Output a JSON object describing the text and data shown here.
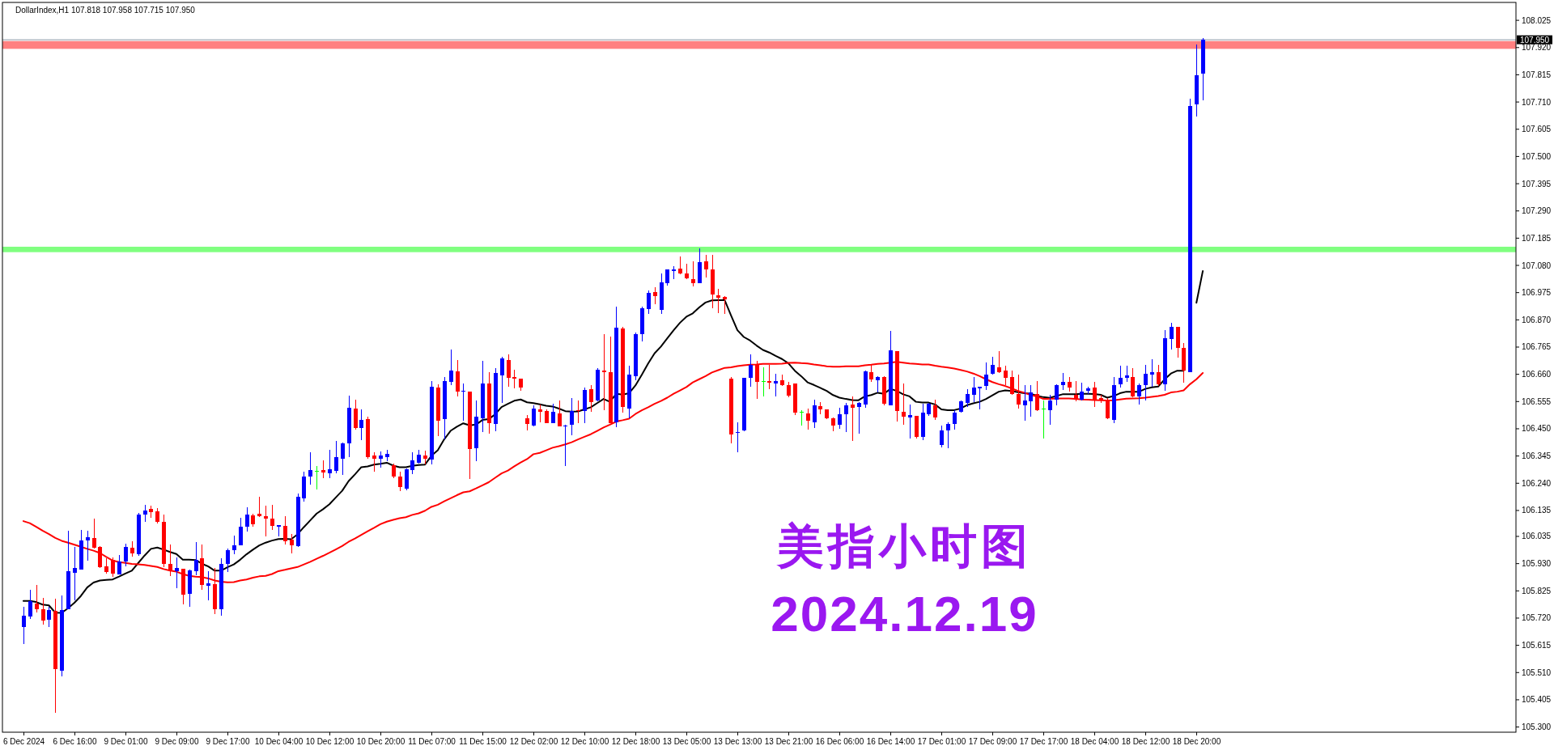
{
  "chart_data": {
    "type": "candlestick",
    "title": "DollarIndex,H1 107.818 107.958 107.715 107.950",
    "categories": [
      "6 Dec 2024",
      null,
      null,
      null,
      null,
      null,
      null,
      null,
      "6 Dec 16:00",
      null,
      null,
      null,
      null,
      null,
      null,
      null,
      "9 Dec 01:00",
      null,
      null,
      null,
      null,
      null,
      null,
      null,
      "9 Dec 09:00",
      null,
      null,
      null,
      null,
      null,
      null,
      null,
      "9 Dec 17:00",
      null,
      null,
      null,
      null,
      null,
      null,
      null,
      "10 Dec 04:00",
      null,
      null,
      null,
      null,
      null,
      null,
      null,
      "10 Dec 12:00",
      null,
      null,
      null,
      null,
      null,
      null,
      null,
      "10 Dec 20:00",
      null,
      null,
      null,
      null,
      null,
      null,
      null,
      "11 Dec 07:00",
      null,
      null,
      null,
      null,
      null,
      null,
      null,
      "11 Dec 15:00",
      null,
      null,
      null,
      null,
      null,
      null,
      null,
      "12 Dec 02:00",
      null,
      null,
      null,
      null,
      null,
      null,
      null,
      "12 Dec 10:00",
      null,
      null,
      null,
      null,
      null,
      null,
      null,
      "12 Dec 18:00",
      null,
      null,
      null,
      null,
      null,
      null,
      null,
      "13 Dec 05:00",
      null,
      null,
      null,
      null,
      null,
      null,
      null,
      "13 Dec 13:00",
      null,
      null,
      null,
      null,
      null,
      null,
      null,
      "13 Dec 21:00",
      null,
      null,
      null,
      null,
      null,
      null,
      null,
      "16 Dec 06:00",
      null,
      null,
      null,
      null,
      null,
      null,
      null,
      "16 Dec 14:00",
      null,
      null,
      null,
      null,
      null,
      null,
      null,
      "17 Dec 01:00",
      null,
      null,
      null,
      null,
      null,
      null,
      null,
      "17 Dec 09:00",
      null,
      null,
      null,
      null,
      null,
      null,
      null,
      "17 Dec 17:00",
      null,
      null,
      null,
      null,
      null,
      null,
      null,
      "18 Dec 04:00",
      null,
      null,
      null,
      null,
      null,
      null,
      null,
      "18 Dec 12:00",
      null,
      null,
      null,
      null,
      null,
      null,
      null,
      "18 Dec 20:00",
      null
    ],
    "ohlc": [
      [
        105.685,
        105.763,
        105.62,
        105.73
      ],
      [
        105.727,
        105.828,
        105.717,
        105.786
      ],
      [
        105.777,
        105.847,
        105.741,
        105.753
      ],
      [
        105.753,
        105.797,
        105.696,
        105.711
      ],
      [
        105.715,
        105.763,
        105.685,
        105.751
      ],
      [
        105.747,
        105.795,
        105.356,
        105.522
      ],
      [
        105.518,
        105.807,
        105.496,
        105.75
      ],
      [
        105.755,
        106.057,
        105.753,
        105.901
      ],
      [
        105.895,
        105.994,
        105.789,
        105.913
      ],
      [
        105.908,
        106.06,
        105.908,
        106.019
      ],
      [
        106.019,
        106.057,
        105.942,
        106.032
      ],
      [
        106.029,
        106.105,
        105.988,
        105.992
      ],
      [
        105.994,
        105.997,
        105.914,
        105.917
      ],
      [
        105.918,
        105.951,
        105.89,
        105.899
      ],
      [
        105.944,
        105.953,
        105.878,
        105.892
      ],
      [
        105.889,
        105.963,
        105.888,
        105.938
      ],
      [
        105.939,
        106.006,
        105.919,
        105.994
      ],
      [
        105.991,
        106.016,
        105.956,
        105.97
      ],
      [
        105.967,
        106.125,
        105.959,
        106.119
      ],
      [
        106.12,
        106.156,
        106.092,
        106.134
      ],
      [
        106.141,
        106.152,
        106.107,
        106.13
      ],
      [
        106.132,
        106.143,
        106.086,
        106.091
      ],
      [
        106.091,
        106.119,
        105.916,
        105.93
      ],
      [
        105.929,
        106.003,
        105.882,
        105.903
      ],
      [
        105.901,
        105.953,
        105.836,
        105.913
      ],
      [
        105.91,
        105.91,
        105.774,
        105.811
      ],
      [
        105.815,
        105.906,
        105.763,
        105.904
      ],
      [
        105.902,
        106.013,
        105.885,
        105.946
      ],
      [
        105.951,
        106.003,
        105.829,
        105.849
      ],
      [
        105.846,
        105.901,
        105.788,
        105.854
      ],
      [
        105.851,
        105.913,
        105.736,
        105.755
      ],
      [
        105.753,
        105.951,
        105.73,
        105.929
      ],
      [
        105.93,
        105.987,
        105.899,
        105.982
      ],
      [
        105.983,
        106.038,
        105.966,
        106.001
      ],
      [
        106.001,
        106.107,
        106.001,
        106.072
      ],
      [
        106.073,
        106.147,
        106.053,
        106.119
      ],
      [
        106.116,
        106.122,
        106.073,
        106.081
      ],
      [
        106.122,
        106.188,
        106.109,
        106.112
      ],
      [
        106.113,
        106.153,
        106.034,
        106.105
      ],
      [
        106.104,
        106.156,
        106.06,
        106.075
      ],
      [
        106.073,
        106.079,
        106.034,
        106.079
      ],
      [
        106.076,
        106.113,
        106.005,
        106.016
      ],
      [
        106.024,
        106.045,
        105.97,
        106.001
      ],
      [
        105.998,
        106.199,
        105.995,
        106.188
      ],
      [
        106.182,
        106.286,
        106.168,
        106.265
      ],
      [
        106.267,
        106.359,
        106.235,
        106.291
      ],
      [
        106.287,
        106.307,
        106.217,
        106.287
      ],
      [
        106.291,
        106.329,
        106.261,
        106.282
      ],
      [
        106.277,
        106.369,
        106.261,
        106.294
      ],
      [
        106.289,
        106.404,
        106.279,
        106.341
      ],
      [
        106.336,
        106.398,
        106.271,
        106.395
      ],
      [
        106.395,
        106.578,
        106.342,
        106.532
      ],
      [
        106.527,
        106.563,
        106.447,
        106.454
      ],
      [
        106.453,
        106.525,
        106.407,
        106.485
      ],
      [
        106.488,
        106.496,
        106.333,
        106.341
      ],
      [
        106.347,
        106.36,
        106.286,
        106.336
      ],
      [
        106.334,
        106.362,
        106.299,
        106.347
      ],
      [
        106.342,
        106.37,
        106.326,
        106.354
      ],
      [
        106.31,
        106.317,
        106.261,
        106.266
      ],
      [
        106.266,
        106.286,
        106.211,
        106.224
      ],
      [
        106.22,
        106.296,
        106.214,
        106.294
      ],
      [
        106.292,
        106.36,
        106.274,
        106.328
      ],
      [
        106.319,
        106.37,
        106.315,
        106.35
      ],
      [
        106.347,
        106.367,
        106.313,
        106.336
      ],
      [
        106.332,
        106.634,
        106.314,
        106.613
      ],
      [
        106.61,
        106.622,
        106.421,
        106.482
      ],
      [
        106.486,
        106.651,
        106.409,
        106.634
      ],
      [
        106.632,
        106.756,
        106.619,
        106.675
      ],
      [
        106.672,
        106.716,
        106.575,
        106.594
      ],
      [
        106.592,
        106.625,
        106.482,
        106.597
      ],
      [
        106.594,
        106.594,
        106.255,
        106.372
      ],
      [
        106.376,
        106.56,
        106.326,
        106.497
      ],
      [
        106.489,
        106.712,
        106.438,
        106.625
      ],
      [
        106.625,
        106.669,
        106.432,
        106.473
      ],
      [
        106.469,
        106.684,
        106.442,
        106.664
      ],
      [
        106.656,
        106.726,
        106.549,
        106.72
      ],
      [
        106.716,
        106.738,
        106.611,
        106.648
      ],
      [
        106.651,
        106.679,
        106.606,
        106.642
      ],
      [
        106.642,
        106.644,
        106.598,
        106.608
      ],
      [
        106.492,
        106.504,
        106.444,
        106.469
      ],
      [
        106.463,
        106.541,
        106.458,
        106.528
      ],
      [
        106.525,
        106.542,
        106.476,
        106.515
      ],
      [
        106.518,
        106.525,
        106.473,
        106.473
      ],
      [
        106.471,
        106.546,
        106.471,
        106.516
      ],
      [
        106.51,
        106.559,
        106.458,
        106.458
      ],
      [
        106.458,
        106.465,
        106.307,
        106.463
      ],
      [
        106.467,
        106.57,
        106.424,
        106.518
      ],
      [
        106.521,
        106.559,
        106.471,
        106.517
      ],
      [
        106.518,
        106.609,
        106.473,
        106.599
      ],
      [
        106.603,
        106.619,
        106.515,
        106.554
      ],
      [
        106.558,
        106.685,
        106.556,
        106.679
      ],
      [
        106.674,
        106.814,
        106.523,
        106.669
      ],
      [
        106.669,
        106.806,
        106.473,
        106.473
      ],
      [
        106.476,
        106.921,
        106.457,
        106.84
      ],
      [
        106.837,
        106.842,
        106.513,
        106.533
      ],
      [
        106.528,
        106.692,
        106.492,
        106.659
      ],
      [
        106.654,
        106.821,
        106.637,
        106.816
      ],
      [
        106.816,
        106.92,
        106.788,
        106.916
      ],
      [
        106.913,
        106.983,
        106.894,
        106.975
      ],
      [
        106.977,
        106.996,
        106.931,
        106.963
      ],
      [
        106.908,
        107.05,
        106.894,
        107.015
      ],
      [
        107.012,
        107.066,
        107.003,
        107.063
      ],
      [
        107.058,
        107.077,
        107.027,
        107.066
      ],
      [
        107.068,
        107.113,
        107.047,
        107.05
      ],
      [
        107.049,
        107.087,
        107.027,
        107.029
      ],
      [
        107.028,
        107.095,
        106.998,
        107.01
      ],
      [
        107.013,
        107.147,
        107.013,
        107.094
      ],
      [
        107.096,
        107.121,
        107.033,
        107.063
      ],
      [
        107.066,
        107.12,
        106.916,
        106.969
      ],
      [
        106.965,
        106.991,
        106.897,
        106.954
      ],
      [
        106.958,
        106.962,
        106.894,
        106.948
      ],
      [
        106.643,
        106.65,
        106.393,
        106.429
      ],
      [
        106.432,
        106.474,
        106.359,
        106.435
      ],
      [
        106.445,
        106.648,
        106.44,
        106.646
      ],
      [
        106.648,
        106.736,
        106.613,
        106.697
      ],
      [
        106.695,
        106.712,
        106.565,
        106.632
      ],
      [
        106.633,
        106.687,
        106.575,
        106.633
      ],
      [
        106.634,
        106.695,
        106.603,
        106.629
      ],
      [
        106.626,
        106.663,
        106.575,
        106.634
      ],
      [
        106.637,
        106.658,
        106.615,
        106.617
      ],
      [
        106.617,
        106.63,
        106.572,
        106.578
      ],
      [
        106.625,
        106.625,
        106.504,
        106.513
      ],
      [
        106.513,
        106.521,
        106.461,
        106.513
      ],
      [
        106.509,
        106.528,
        106.448,
        106.481
      ],
      [
        106.476,
        106.563,
        106.452,
        106.541
      ],
      [
        106.538,
        106.554,
        106.507,
        106.525
      ],
      [
        106.525,
        106.525,
        106.486,
        106.489
      ],
      [
        106.489,
        106.494,
        106.442,
        106.461
      ],
      [
        106.464,
        106.531,
        106.45,
        106.506
      ],
      [
        106.507,
        106.551,
        106.438,
        106.541
      ],
      [
        106.544,
        106.575,
        106.403,
        106.531
      ],
      [
        106.535,
        106.554,
        106.431,
        106.551
      ],
      [
        106.544,
        106.676,
        106.531,
        106.672
      ],
      [
        106.669,
        106.695,
        106.632,
        106.641
      ],
      [
        106.637,
        106.653,
        106.589,
        106.65
      ],
      [
        106.65,
        106.653,
        106.541,
        106.547
      ],
      [
        106.541,
        106.828,
        106.539,
        106.754
      ],
      [
        106.75,
        106.75,
        106.479,
        106.517
      ],
      [
        106.516,
        106.625,
        106.466,
        106.497
      ],
      [
        106.495,
        106.544,
        106.414,
        106.502
      ],
      [
        106.5,
        106.5,
        106.411,
        106.419
      ],
      [
        106.419,
        106.547,
        106.405,
        106.513
      ],
      [
        106.506,
        106.549,
        106.5,
        106.546
      ],
      [
        106.541,
        106.561,
        106.483,
        106.494
      ],
      [
        106.388,
        106.461,
        106.379,
        106.444
      ],
      [
        106.445,
        106.476,
        106.374,
        106.469
      ],
      [
        106.47,
        106.521,
        106.448,
        106.513
      ],
      [
        106.515,
        106.559,
        106.511,
        106.556
      ],
      [
        106.551,
        106.604,
        106.535,
        106.584
      ],
      [
        106.582,
        106.651,
        106.554,
        106.609
      ],
      [
        106.606,
        106.611,
        106.526,
        106.611
      ],
      [
        106.615,
        106.705,
        106.599,
        106.66
      ],
      [
        106.663,
        106.726,
        106.66,
        106.697
      ],
      [
        106.687,
        106.75,
        106.666,
        106.669
      ],
      [
        106.675,
        106.693,
        106.619,
        106.648
      ],
      [
        106.649,
        106.674,
        106.58,
        106.583
      ],
      [
        106.583,
        106.658,
        106.528,
        106.542
      ],
      [
        106.539,
        106.619,
        106.481,
        106.559
      ],
      [
        106.557,
        106.619,
        106.497,
        106.589
      ],
      [
        106.585,
        106.634,
        106.518,
        106.521
      ],
      [
        106.525,
        106.559,
        106.411,
        106.525
      ],
      [
        106.523,
        106.581,
        106.465,
        106.559
      ],
      [
        106.561,
        106.621,
        106.541,
        106.617
      ],
      [
        106.619,
        106.665,
        106.599,
        106.632
      ],
      [
        106.632,
        106.65,
        106.593,
        106.61
      ],
      [
        106.581,
        106.633,
        106.555,
        106.563
      ],
      [
        106.561,
        106.628,
        106.558,
        106.593
      ],
      [
        106.596,
        106.613,
        106.583,
        106.606
      ],
      [
        106.61,
        106.63,
        106.535,
        106.563
      ],
      [
        106.567,
        106.581,
        106.55,
        106.559
      ],
      [
        106.561,
        106.567,
        106.488,
        106.492
      ],
      [
        106.483,
        106.65,
        106.471,
        106.619
      ],
      [
        106.621,
        106.692,
        106.61,
        106.645
      ],
      [
        106.645,
        106.692,
        106.63,
        106.657
      ],
      [
        106.65,
        106.685,
        106.573,
        106.576
      ],
      [
        106.576,
        106.625,
        106.544,
        106.617
      ],
      [
        106.617,
        106.696,
        106.559,
        106.662
      ],
      [
        106.659,
        106.717,
        106.613,
        106.667
      ],
      [
        106.669,
        106.696,
        106.615,
        106.621
      ],
      [
        106.621,
        106.83,
        106.596,
        106.8
      ],
      [
        106.796,
        106.858,
        106.757,
        106.842
      ],
      [
        106.844,
        106.844,
        106.723,
        106.761
      ],
      [
        106.763,
        106.781,
        106.627,
        106.674
      ],
      [
        106.669,
        107.724,
        106.669,
        107.696
      ],
      [
        107.701,
        107.933,
        107.653,
        107.814
      ],
      [
        107.818,
        107.958,
        107.715,
        107.95
      ]
    ],
    "colors": [
      "#0000ff",
      "#0000ff",
      "#ff0000",
      "#ff0000",
      "#0000ff",
      "#ff0000",
      "#0000ff",
      "#0000ff",
      "#0000ff",
      "#0000ff",
      "#0000ff",
      "#ff0000",
      "#ff0000",
      "#ff0000",
      "#ff0000",
      "#0000ff",
      "#0000ff",
      "#ff0000",
      "#0000ff",
      "#0000ff",
      "#ff0000",
      "#ff0000",
      "#ff0000",
      "#ff0000",
      "#0000ff",
      "#ff0000",
      "#0000ff",
      "#0000ff",
      "#ff0000",
      "#0000ff",
      "#ff0000",
      "#0000ff",
      "#0000ff",
      "#0000ff",
      "#0000ff",
      "#0000ff",
      "#ff0000",
      "#ff0000",
      "#ff0000",
      "#ff0000",
      "#0000ff",
      "#ff0000",
      "#ff0000",
      "#0000ff",
      "#0000ff",
      "#0000ff",
      "#00ff00",
      "#ff0000",
      "#0000ff",
      "#0000ff",
      "#0000ff",
      "#0000ff",
      "#ff0000",
      "#0000ff",
      "#ff0000",
      "#ff0000",
      "#0000ff",
      "#0000ff",
      "#ff0000",
      "#ff0000",
      "#0000ff",
      "#0000ff",
      "#0000ff",
      "#ff0000",
      "#0000ff",
      "#ff0000",
      "#0000ff",
      "#0000ff",
      "#ff0000",
      "#0000ff",
      "#ff0000",
      "#0000ff",
      "#0000ff",
      "#ff0000",
      "#0000ff",
      "#0000ff",
      "#ff0000",
      "#ff0000",
      "#ff0000",
      "#ff0000",
      "#0000ff",
      "#ff0000",
      "#ff0000",
      "#0000ff",
      "#ff0000",
      "#0000ff",
      "#0000ff",
      "#ff0000",
      "#0000ff",
      "#ff0000",
      "#0000ff",
      "#ff0000",
      "#ff0000",
      "#0000ff",
      "#ff0000",
      "#0000ff",
      "#0000ff",
      "#0000ff",
      "#0000ff",
      "#ff0000",
      "#0000ff",
      "#0000ff",
      "#0000ff",
      "#ff0000",
      "#ff0000",
      "#ff0000",
      "#0000ff",
      "#ff0000",
      "#ff0000",
      "#ff0000",
      "#ff0000",
      "#ff0000",
      "#0000ff",
      "#0000ff",
      "#0000ff",
      "#ff0000",
      "#00ff00",
      "#ff0000",
      "#0000ff",
      "#ff0000",
      "#ff0000",
      "#ff0000",
      "#00ff00",
      "#ff0000",
      "#0000ff",
      "#ff0000",
      "#ff0000",
      "#ff0000",
      "#0000ff",
      "#0000ff",
      "#ff0000",
      "#0000ff",
      "#0000ff",
      "#ff0000",
      "#0000ff",
      "#ff0000",
      "#0000ff",
      "#ff0000",
      "#ff0000",
      "#0000ff",
      "#ff0000",
      "#0000ff",
      "#0000ff",
      "#ff0000",
      "#0000ff",
      "#0000ff",
      "#0000ff",
      "#0000ff",
      "#0000ff",
      "#0000ff",
      "#0000ff",
      "#0000ff",
      "#0000ff",
      "#ff0000",
      "#ff0000",
      "#ff0000",
      "#ff0000",
      "#0000ff",
      "#0000ff",
      "#ff0000",
      "#00ff00",
      "#0000ff",
      "#0000ff",
      "#0000ff",
      "#ff0000",
      "#ff0000",
      "#0000ff",
      "#0000ff",
      "#ff0000",
      "#ff0000",
      "#ff0000",
      "#0000ff",
      "#0000ff",
      "#0000ff",
      "#ff0000",
      "#0000ff",
      "#0000ff",
      "#0000ff",
      "#ff0000",
      "#0000ff",
      "#0000ff",
      "#ff0000",
      "#ff0000",
      "#0000ff",
      "#0000ff",
      "#0000ff"
    ],
    "series": [
      {
        "type": "line",
        "color": "#000000",
        "values": [
          105.786,
          105.786,
          105.782,
          105.772,
          105.769,
          105.741,
          105.74,
          105.758,
          105.779,
          105.805,
          105.838,
          105.857,
          105.865,
          105.867,
          105.869,
          105.88,
          105.892,
          105.903,
          105.932,
          105.961,
          105.987,
          105.992,
          105.984,
          105.975,
          105.967,
          105.945,
          105.945,
          105.944,
          105.93,
          105.919,
          105.903,
          105.903,
          105.916,
          105.927,
          105.945,
          105.966,
          105.984,
          106.0,
          106.011,
          106.019,
          106.025,
          106.026,
          106.024,
          106.043,
          106.071,
          106.097,
          106.123,
          106.14,
          106.159,
          106.185,
          106.211,
          106.248,
          106.274,
          106.302,
          106.305,
          106.312,
          106.315,
          106.319,
          106.308,
          106.302,
          106.302,
          106.307,
          106.31,
          106.312,
          106.346,
          106.367,
          106.409,
          106.442,
          106.458,
          106.471,
          106.463,
          106.466,
          106.484,
          106.487,
          106.506,
          106.534,
          106.546,
          106.558,
          106.563,
          106.552,
          106.549,
          106.544,
          106.539,
          106.536,
          106.528,
          106.518,
          106.516,
          106.517,
          106.525,
          106.533,
          106.549,
          106.565,
          106.554,
          106.585,
          106.582,
          106.587,
          106.617,
          106.658,
          106.702,
          106.741,
          106.767,
          106.799,
          106.83,
          106.859,
          106.882,
          106.895,
          106.918,
          106.937,
          106.945,
          106.946,
          106.946,
          106.887,
          106.83,
          106.804,
          106.79,
          106.771,
          106.754,
          106.744,
          106.731,
          106.719,
          106.702,
          106.674,
          106.653,
          106.629,
          106.619,
          106.608,
          106.596,
          106.58,
          106.57,
          106.565,
          106.561,
          106.56,
          106.575,
          106.58,
          106.589,
          106.585,
          106.604,
          106.596,
          106.583,
          106.575,
          106.554,
          106.551,
          106.551,
          106.544,
          106.525,
          106.522,
          106.522,
          106.528,
          106.541,
          106.548,
          106.554,
          106.565,
          106.579,
          106.593,
          106.598,
          106.596,
          106.591,
          106.587,
          106.585,
          106.577,
          106.572,
          106.569,
          106.576,
          106.583,
          106.583,
          106.583,
          106.585,
          106.585,
          106.584,
          106.581,
          106.57,
          106.576,
          106.587,
          106.593,
          106.593,
          106.593,
          106.604,
          106.61,
          106.613,
          106.64,
          106.663,
          106.674,
          106.674,
          null,
          106.936,
          107.058
        ]
      },
      {
        "type": "line",
        "color": "#ff0000",
        "values": [
          106.094,
          106.086,
          106.072,
          106.057,
          106.044,
          106.029,
          106.018,
          106.011,
          106.003,
          105.995,
          105.987,
          105.98,
          105.971,
          105.956,
          105.942,
          105.936,
          105.933,
          105.929,
          105.927,
          105.925,
          105.921,
          105.917,
          105.909,
          105.903,
          105.899,
          105.89,
          105.883,
          105.88,
          105.878,
          105.873,
          105.865,
          105.86,
          105.858,
          105.859,
          105.865,
          105.869,
          105.876,
          105.881,
          105.883,
          105.89,
          105.901,
          105.906,
          105.912,
          105.917,
          105.927,
          105.937,
          105.949,
          105.96,
          105.972,
          105.985,
          105.998,
          106.014,
          106.027,
          106.041,
          106.055,
          106.068,
          106.082,
          106.092,
          106.099,
          106.105,
          106.109,
          106.118,
          106.124,
          106.134,
          106.149,
          106.157,
          106.17,
          106.182,
          106.194,
          106.205,
          106.209,
          106.22,
          106.232,
          106.244,
          106.261,
          106.278,
          106.289,
          106.305,
          106.32,
          106.333,
          106.352,
          106.357,
          106.367,
          106.377,
          106.383,
          106.39,
          106.398,
          106.409,
          106.419,
          106.429,
          106.442,
          106.455,
          106.466,
          106.478,
          106.483,
          106.489,
          106.507,
          106.521,
          106.533,
          106.546,
          106.557,
          106.57,
          106.585,
          106.598,
          106.611,
          106.629,
          106.641,
          106.653,
          106.667,
          106.676,
          106.685,
          106.687,
          106.692,
          106.695,
          106.697,
          106.698,
          106.7,
          106.7,
          106.7,
          106.701,
          106.704,
          106.705,
          106.703,
          106.702,
          106.698,
          106.695,
          106.691,
          106.689,
          106.689,
          106.691,
          106.691,
          106.691,
          106.695,
          106.697,
          106.7,
          106.702,
          106.705,
          106.708,
          106.705,
          106.702,
          106.7,
          106.698,
          106.698,
          106.693,
          106.689,
          106.686,
          106.682,
          106.677,
          106.671,
          106.663,
          106.653,
          106.641,
          106.63,
          106.622,
          106.615,
          106.606,
          106.596,
          106.589,
          106.58,
          106.575,
          106.565,
          106.565,
          106.567,
          106.567,
          106.567,
          106.565,
          106.563,
          106.562,
          106.561,
          106.56,
          106.559,
          106.56,
          106.563,
          106.566,
          106.567,
          106.568,
          106.57,
          106.573,
          106.576,
          106.581,
          106.59,
          106.593,
          106.598,
          106.622,
          106.641,
          106.665
        ]
      }
    ],
    "ylim": [
      105.28,
      108.094
    ],
    "yticks": [
      108.025,
      {
        "value": 107.92,
        "label": "107.920"
      },
      107.815,
      {
        "value": 107.71,
        "label": "107.710"
      },
      107.605,
      {
        "value": 107.5,
        "label": "107.500"
      },
      107.395,
      {
        "value": 107.29,
        "label": "107.290"
      },
      107.185,
      {
        "value": 107.08,
        "label": "107.080"
      },
      106.975,
      {
        "value": 106.87,
        "label": "106.870"
      },
      106.765,
      {
        "value": 106.66,
        "label": "106.660"
      },
      106.555,
      {
        "value": 106.45,
        "label": "106.450"
      },
      106.345,
      {
        "value": 106.24,
        "label": "106.240"
      },
      106.135,
      106.035,
      {
        "value": 105.93,
        "label": "105.930"
      },
      105.825,
      {
        "value": 105.72,
        "label": "105.720"
      },
      105.615,
      {
        "value": 105.51,
        "label": "105.510"
      },
      105.405,
      {
        "value": 105.3,
        "label": "105.300"
      }
    ],
    "ref_lines": [
      {
        "axis": "y",
        "value": 107.95,
        "label": "107.950",
        "color": "#8c9aa8"
      }
    ],
    "bands": [
      {
        "axis": "y",
        "from": 107.131,
        "to": 107.152,
        "color": "#80ff80"
      },
      {
        "axis": "y",
        "from": 107.915,
        "to": 107.945,
        "color": "#ff8080"
      }
    ],
    "annotations": [
      "美指小时图",
      "2024.12.19"
    ]
  }
}
